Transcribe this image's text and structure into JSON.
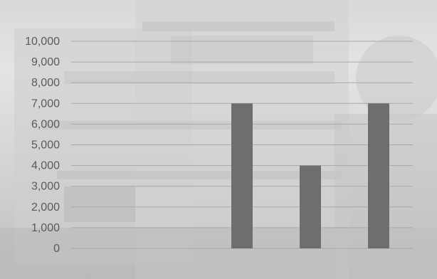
{
  "chart_data": {
    "type": "bar",
    "categories": [
      "",
      "",
      "",
      "",
      ""
    ],
    "values": [
      0,
      0,
      7000,
      4000,
      7000
    ],
    "title": "",
    "xlabel": "",
    "ylabel": "",
    "ylim": [
      0,
      10000
    ],
    "y_ticks": [
      0,
      1000,
      2000,
      3000,
      4000,
      5000,
      6000,
      7000,
      8000,
      9000,
      10000
    ],
    "y_tick_labels": [
      "0",
      "1,000",
      "2,000",
      "3,000",
      "4,000",
      "5,000",
      "6,000",
      "7,000",
      "8,000",
      "9,000",
      "10,000"
    ],
    "grid": true,
    "legend": "none",
    "colors": {
      "bar": "#6e6e6e",
      "grid": "#a9a9a9",
      "tick_text": "#5a5a5a"
    }
  }
}
